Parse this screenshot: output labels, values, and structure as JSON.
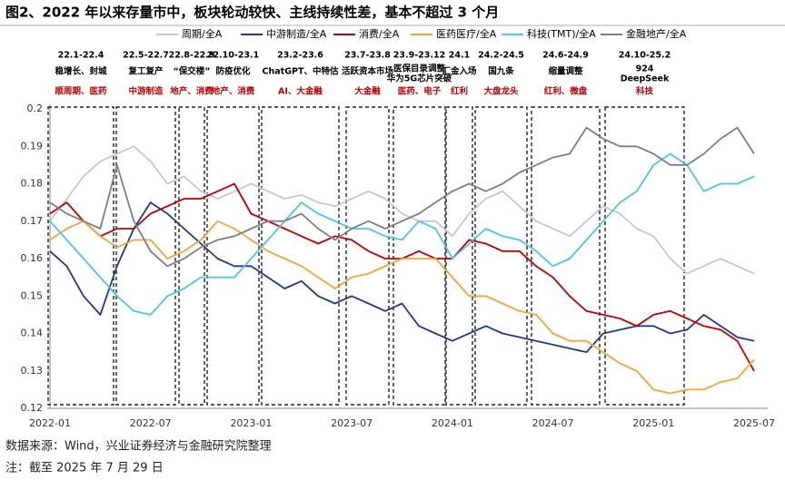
{
  "chart_data": {
    "type": "line",
    "title": "图2、2022 年以来存量市中，板块轮动较快、主线持续性差，基本不超过 3 个月",
    "source": "数据来源：Wind，兴业证券经济与金融研究院整理",
    "note": "注：截至 2025 年 7 月 29 日",
    "categories": [
      "2022-01",
      null,
      null,
      null,
      null,
      null,
      "2022-07",
      null,
      null,
      null,
      null,
      null,
      "2023-01",
      null,
      null,
      null,
      null,
      null,
      "2023-07",
      null,
      null,
      null,
      null,
      null,
      "2024-01",
      null,
      null,
      null,
      null,
      null,
      "2024-07",
      null,
      null,
      null,
      null,
      null,
      "2025-01",
      null,
      null,
      null,
      null,
      null,
      "2025-07"
    ],
    "ylim": [
      0.12,
      0.2
    ],
    "yticks": [
      0.12,
      0.13,
      0.14,
      0.15,
      0.16,
      0.17,
      0.18,
      0.19,
      0.2
    ],
    "periods": [
      {
        "range": "22.1-22.4",
        "theme": [
          "稳增长、封城"
        ],
        "sectors": "顺周期、医药"
      },
      {
        "range": "22.5-22.7",
        "theme": [
          "复工复产"
        ],
        "sectors": "中游制造"
      },
      {
        "range": "22.8-22.9",
        "theme": [
          "“保交楼”"
        ],
        "sectors": "地产、消费"
      },
      {
        "range": "22.10-23.1",
        "theme": [
          "防疫优化"
        ],
        "sectors": "地产、消费"
      },
      {
        "range": "23.2-23.6",
        "theme": [
          "ChatGPT、中特估"
        ],
        "sectors": "AI、大金融"
      },
      {
        "range": "23.7-23.8",
        "theme": [
          "活跃资本市场"
        ],
        "sectors": "大金融"
      },
      {
        "range": "23.9-23.12",
        "theme": [
          "医保目录调整",
          "华为5G芯片突破"
        ],
        "sectors": "医药、电子"
      },
      {
        "range": "24.1",
        "theme": [
          "汇金入场"
        ],
        "sectors": "红利"
      },
      {
        "range": "24.2-24.5",
        "theme": [
          "国九条"
        ],
        "sectors": "大盘龙头"
      },
      {
        "range": "24.6-24.9",
        "theme": [
          "缩量调整"
        ],
        "sectors": "红利、微盘"
      },
      {
        "range": "24.10-25.2",
        "theme": [
          "924",
          "DeepSeek"
        ],
        "sectors": "科技"
      }
    ],
    "series": [
      {
        "name": "周期/全A",
        "color": "#c8c8c8",
        "values": [
          0.17,
          0.176,
          0.182,
          0.186,
          0.188,
          0.19,
          0.186,
          0.18,
          0.182,
          0.178,
          0.176,
          0.178,
          0.18,
          0.178,
          0.176,
          0.177,
          0.175,
          0.174,
          0.176,
          0.178,
          0.176,
          0.172,
          0.17,
          0.17,
          0.166,
          0.172,
          0.176,
          0.178,
          0.174,
          0.17,
          0.168,
          0.166,
          0.17,
          0.174,
          0.172,
          0.168,
          0.166,
          0.16,
          0.156,
          0.158,
          0.16,
          0.158,
          0.156
        ]
      },
      {
        "name": "中游制造/全A",
        "color": "#1f3a8a",
        "values": [
          0.162,
          0.158,
          0.15,
          0.145,
          0.158,
          0.168,
          0.175,
          0.172,
          0.168,
          0.164,
          0.16,
          0.158,
          0.158,
          0.155,
          0.152,
          0.154,
          0.15,
          0.148,
          0.15,
          0.148,
          0.146,
          0.148,
          0.142,
          0.14,
          0.138,
          0.14,
          0.142,
          0.14,
          0.139,
          0.138,
          0.137,
          0.136,
          0.135,
          0.14,
          0.141,
          0.142,
          0.142,
          0.14,
          0.141,
          0.145,
          0.142,
          0.139,
          0.138
        ]
      },
      {
        "name": "消费/全A",
        "color": "#c00000",
        "values": [
          0.172,
          0.175,
          0.17,
          0.166,
          0.168,
          0.168,
          0.172,
          0.174,
          0.176,
          0.176,
          0.178,
          0.18,
          0.172,
          0.17,
          0.168,
          0.166,
          0.164,
          0.166,
          0.165,
          0.162,
          0.16,
          0.16,
          0.162,
          0.16,
          0.16,
          0.165,
          0.164,
          0.162,
          0.162,
          0.158,
          0.155,
          0.15,
          0.146,
          0.145,
          0.144,
          0.142,
          0.145,
          0.146,
          0.144,
          0.142,
          0.141,
          0.138,
          0.13
        ]
      },
      {
        "name": "医药医疗/全A",
        "color": "#f5a33a",
        "values": [
          0.165,
          0.168,
          0.17,
          0.166,
          0.163,
          0.165,
          0.165,
          0.16,
          0.162,
          0.165,
          0.17,
          0.168,
          0.165,
          0.162,
          0.16,
          0.158,
          0.155,
          0.152,
          0.155,
          0.156,
          0.158,
          0.16,
          0.16,
          0.16,
          0.155,
          0.15,
          0.15,
          0.148,
          0.146,
          0.145,
          0.14,
          0.138,
          0.138,
          0.135,
          0.132,
          0.13,
          0.125,
          0.124,
          0.125,
          0.125,
          0.127,
          0.128,
          0.133
        ]
      },
      {
        "name": "科技(TMT)/全A",
        "color": "#4cc3f0",
        "values": [
          0.17,
          0.165,
          0.16,
          0.155,
          0.15,
          0.146,
          0.145,
          0.15,
          0.152,
          0.155,
          0.155,
          0.155,
          0.16,
          0.165,
          0.17,
          0.175,
          0.172,
          0.17,
          0.168,
          0.168,
          0.166,
          0.165,
          0.17,
          0.168,
          0.16,
          0.164,
          0.168,
          0.166,
          0.165,
          0.162,
          0.158,
          0.16,
          0.165,
          0.17,
          0.175,
          0.178,
          0.185,
          0.188,
          0.185,
          0.178,
          0.18,
          0.18,
          0.182
        ]
      },
      {
        "name": "金融地产/全A",
        "color": "#7f7f7f",
        "values": [
          0.175,
          0.172,
          0.17,
          0.168,
          0.185,
          0.17,
          0.162,
          0.158,
          0.16,
          0.163,
          0.165,
          0.166,
          0.168,
          0.17,
          0.17,
          0.172,
          0.168,
          0.165,
          0.168,
          0.17,
          0.168,
          0.17,
          0.172,
          0.175,
          0.178,
          0.18,
          0.178,
          0.18,
          0.183,
          0.185,
          0.187,
          0.188,
          0.195,
          0.192,
          0.19,
          0.19,
          0.188,
          0.185,
          0.185,
          0.188,
          0.192,
          0.195,
          0.188
        ]
      }
    ]
  }
}
